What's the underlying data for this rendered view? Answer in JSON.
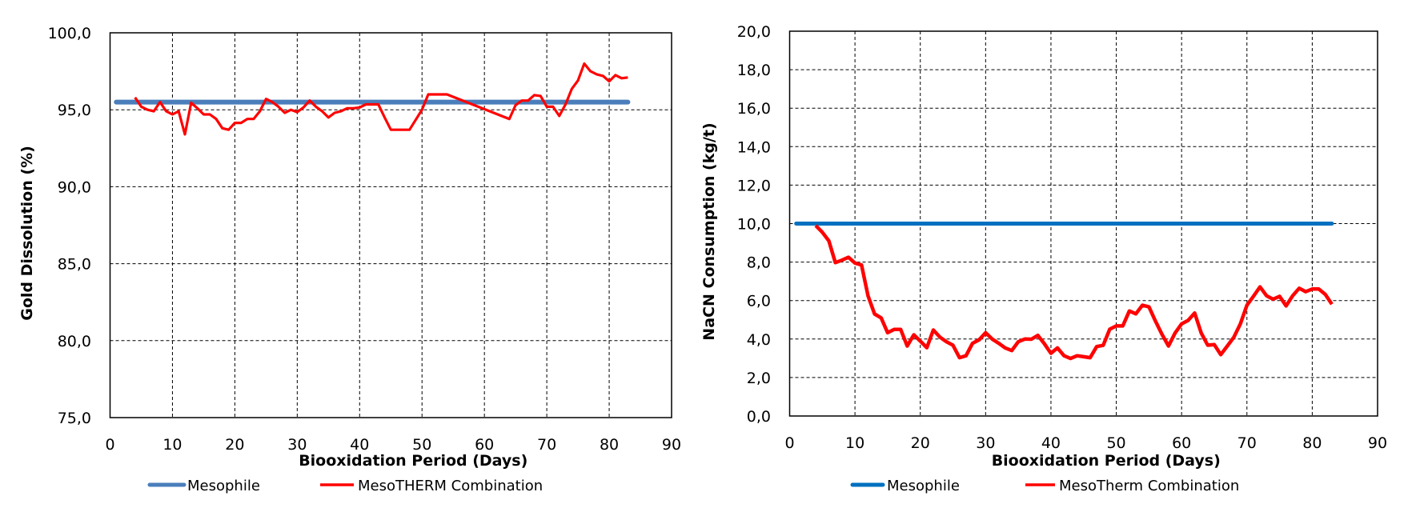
{
  "chart_data": [
    {
      "type": "line",
      "id": "gold",
      "title": "",
      "xlabel": "Biooxidation Period (Days)",
      "ylabel": "Gold Dissolution (%)",
      "xlim": [
        0,
        90
      ],
      "ylim": [
        75,
        100
      ],
      "xticks": [
        0,
        10,
        20,
        30,
        40,
        50,
        60,
        70,
        80,
        90
      ],
      "xtick_labels": [
        "0",
        "10",
        "20",
        "30",
        "40",
        "50",
        "60",
        "70",
        "80",
        "90"
      ],
      "yticks": [
        75,
        80,
        85,
        90,
        95,
        100
      ],
      "ytick_labels": [
        "75,0",
        "80,0",
        "85,0",
        "90,0",
        "95,0",
        "100,0"
      ],
      "grid": true,
      "legend": "bottom",
      "series": [
        {
          "name": "Mesophile",
          "color": "#4A7EBB",
          "x": [
            1,
            83
          ],
          "y": [
            95.5,
            95.5
          ]
        },
        {
          "name": "MesoTHERM Combination",
          "color": "#FF0000",
          "x": [
            4,
            5,
            6,
            7,
            8,
            9,
            10,
            11,
            12,
            13,
            14,
            15,
            16,
            17,
            18,
            19,
            20,
            21,
            22,
            23,
            24,
            25,
            26,
            27,
            28,
            29,
            30,
            31,
            32,
            33,
            34,
            35,
            36,
            37,
            38,
            39,
            40,
            41,
            42,
            43,
            44,
            45,
            48,
            50,
            51,
            54,
            64,
            65,
            66,
            67,
            68,
            69,
            70,
            71,
            72,
            73,
            74,
            75,
            76,
            77,
            78,
            79,
            80,
            81,
            82,
            83
          ],
          "y": [
            95.8,
            95.2,
            95.0,
            94.9,
            95.5,
            94.9,
            94.7,
            94.9,
            93.4,
            95.45,
            95.1,
            94.7,
            94.7,
            94.4,
            93.8,
            93.7,
            94.15,
            94.15,
            94.4,
            94.4,
            94.9,
            95.7,
            95.5,
            95.2,
            94.8,
            95.0,
            94.85,
            95.15,
            95.6,
            95.2,
            94.9,
            94.5,
            94.8,
            94.9,
            95.1,
            95.1,
            95.15,
            95.35,
            95.35,
            95.35,
            94.5,
            93.7,
            93.7,
            95.0,
            96.0,
            96.0,
            94.4,
            95.3,
            95.6,
            95.6,
            95.95,
            95.9,
            95.2,
            95.2,
            94.6,
            95.35,
            96.35,
            96.9,
            98.0,
            97.5,
            97.3,
            97.2,
            96.85,
            97.25,
            97.05,
            97.1
          ]
        }
      ]
    },
    {
      "type": "line",
      "id": "nacn",
      "title": "",
      "xlabel": "Biooxidation Period (Days)",
      "ylabel": "NaCN Consumption (kg/t)",
      "xlim": [
        0,
        90
      ],
      "ylim": [
        0,
        20
      ],
      "xticks": [
        0,
        10,
        20,
        30,
        40,
        50,
        60,
        70,
        80,
        90
      ],
      "xtick_labels": [
        "0",
        "10",
        "20",
        "30",
        "40",
        "50",
        "60",
        "70",
        "80",
        "90"
      ],
      "yticks": [
        0,
        2,
        4,
        6,
        8,
        10,
        12,
        14,
        16,
        18,
        20
      ],
      "ytick_labels": [
        "0,0",
        "2,0",
        "4,0",
        "6,0",
        "8,0",
        "10,0",
        "12,0",
        "14,0",
        "16,0",
        "18,0",
        "20,0"
      ],
      "grid": true,
      "legend": "bottom",
      "series": [
        {
          "name": "Mesophile",
          "color": "#0070C0",
          "x": [
            1,
            83
          ],
          "y": [
            10.0,
            10.0
          ]
        },
        {
          "name": "MesoTherm Combination",
          "color": "#FF0000",
          "x": [
            4,
            5,
            6,
            7,
            8,
            9,
            10,
            11,
            12,
            13,
            14,
            15,
            16,
            17,
            18,
            19,
            20,
            21,
            22,
            23,
            24,
            25,
            26,
            27,
            28,
            29,
            30,
            31,
            32,
            33,
            34,
            35,
            36,
            37,
            38,
            39,
            40,
            41,
            42,
            43,
            44,
            45,
            46,
            47,
            48,
            49,
            50,
            51,
            52,
            53,
            54,
            55,
            56,
            57,
            58,
            59,
            60,
            61,
            62,
            63,
            64,
            65,
            66,
            67,
            68,
            69,
            70,
            71,
            72,
            73,
            74,
            75,
            76,
            77,
            78,
            79,
            80,
            81,
            82,
            83
          ],
          "y": [
            9.9,
            9.55,
            9.1,
            7.97,
            8.1,
            8.25,
            7.95,
            7.85,
            6.25,
            5.3,
            5.1,
            4.33,
            4.5,
            4.5,
            3.64,
            4.22,
            3.89,
            3.55,
            4.47,
            4.1,
            3.86,
            3.68,
            3.03,
            3.13,
            3.78,
            3.96,
            4.33,
            4.0,
            3.78,
            3.54,
            3.4,
            3.86,
            4.0,
            3.99,
            4.19,
            3.75,
            3.26,
            3.54,
            3.13,
            2.99,
            3.13,
            3.08,
            3.03,
            3.61,
            3.67,
            4.51,
            4.68,
            4.68,
            5.46,
            5.31,
            5.76,
            5.67,
            4.93,
            4.24,
            3.64,
            4.31,
            4.79,
            4.97,
            5.35,
            4.31,
            3.68,
            3.71,
            3.19,
            3.64,
            4.1,
            4.79,
            5.76,
            6.22,
            6.71,
            6.25,
            6.07,
            6.22,
            5.72,
            6.25,
            6.64,
            6.46,
            6.6,
            6.6,
            6.32,
            5.81
          ]
        }
      ]
    }
  ]
}
